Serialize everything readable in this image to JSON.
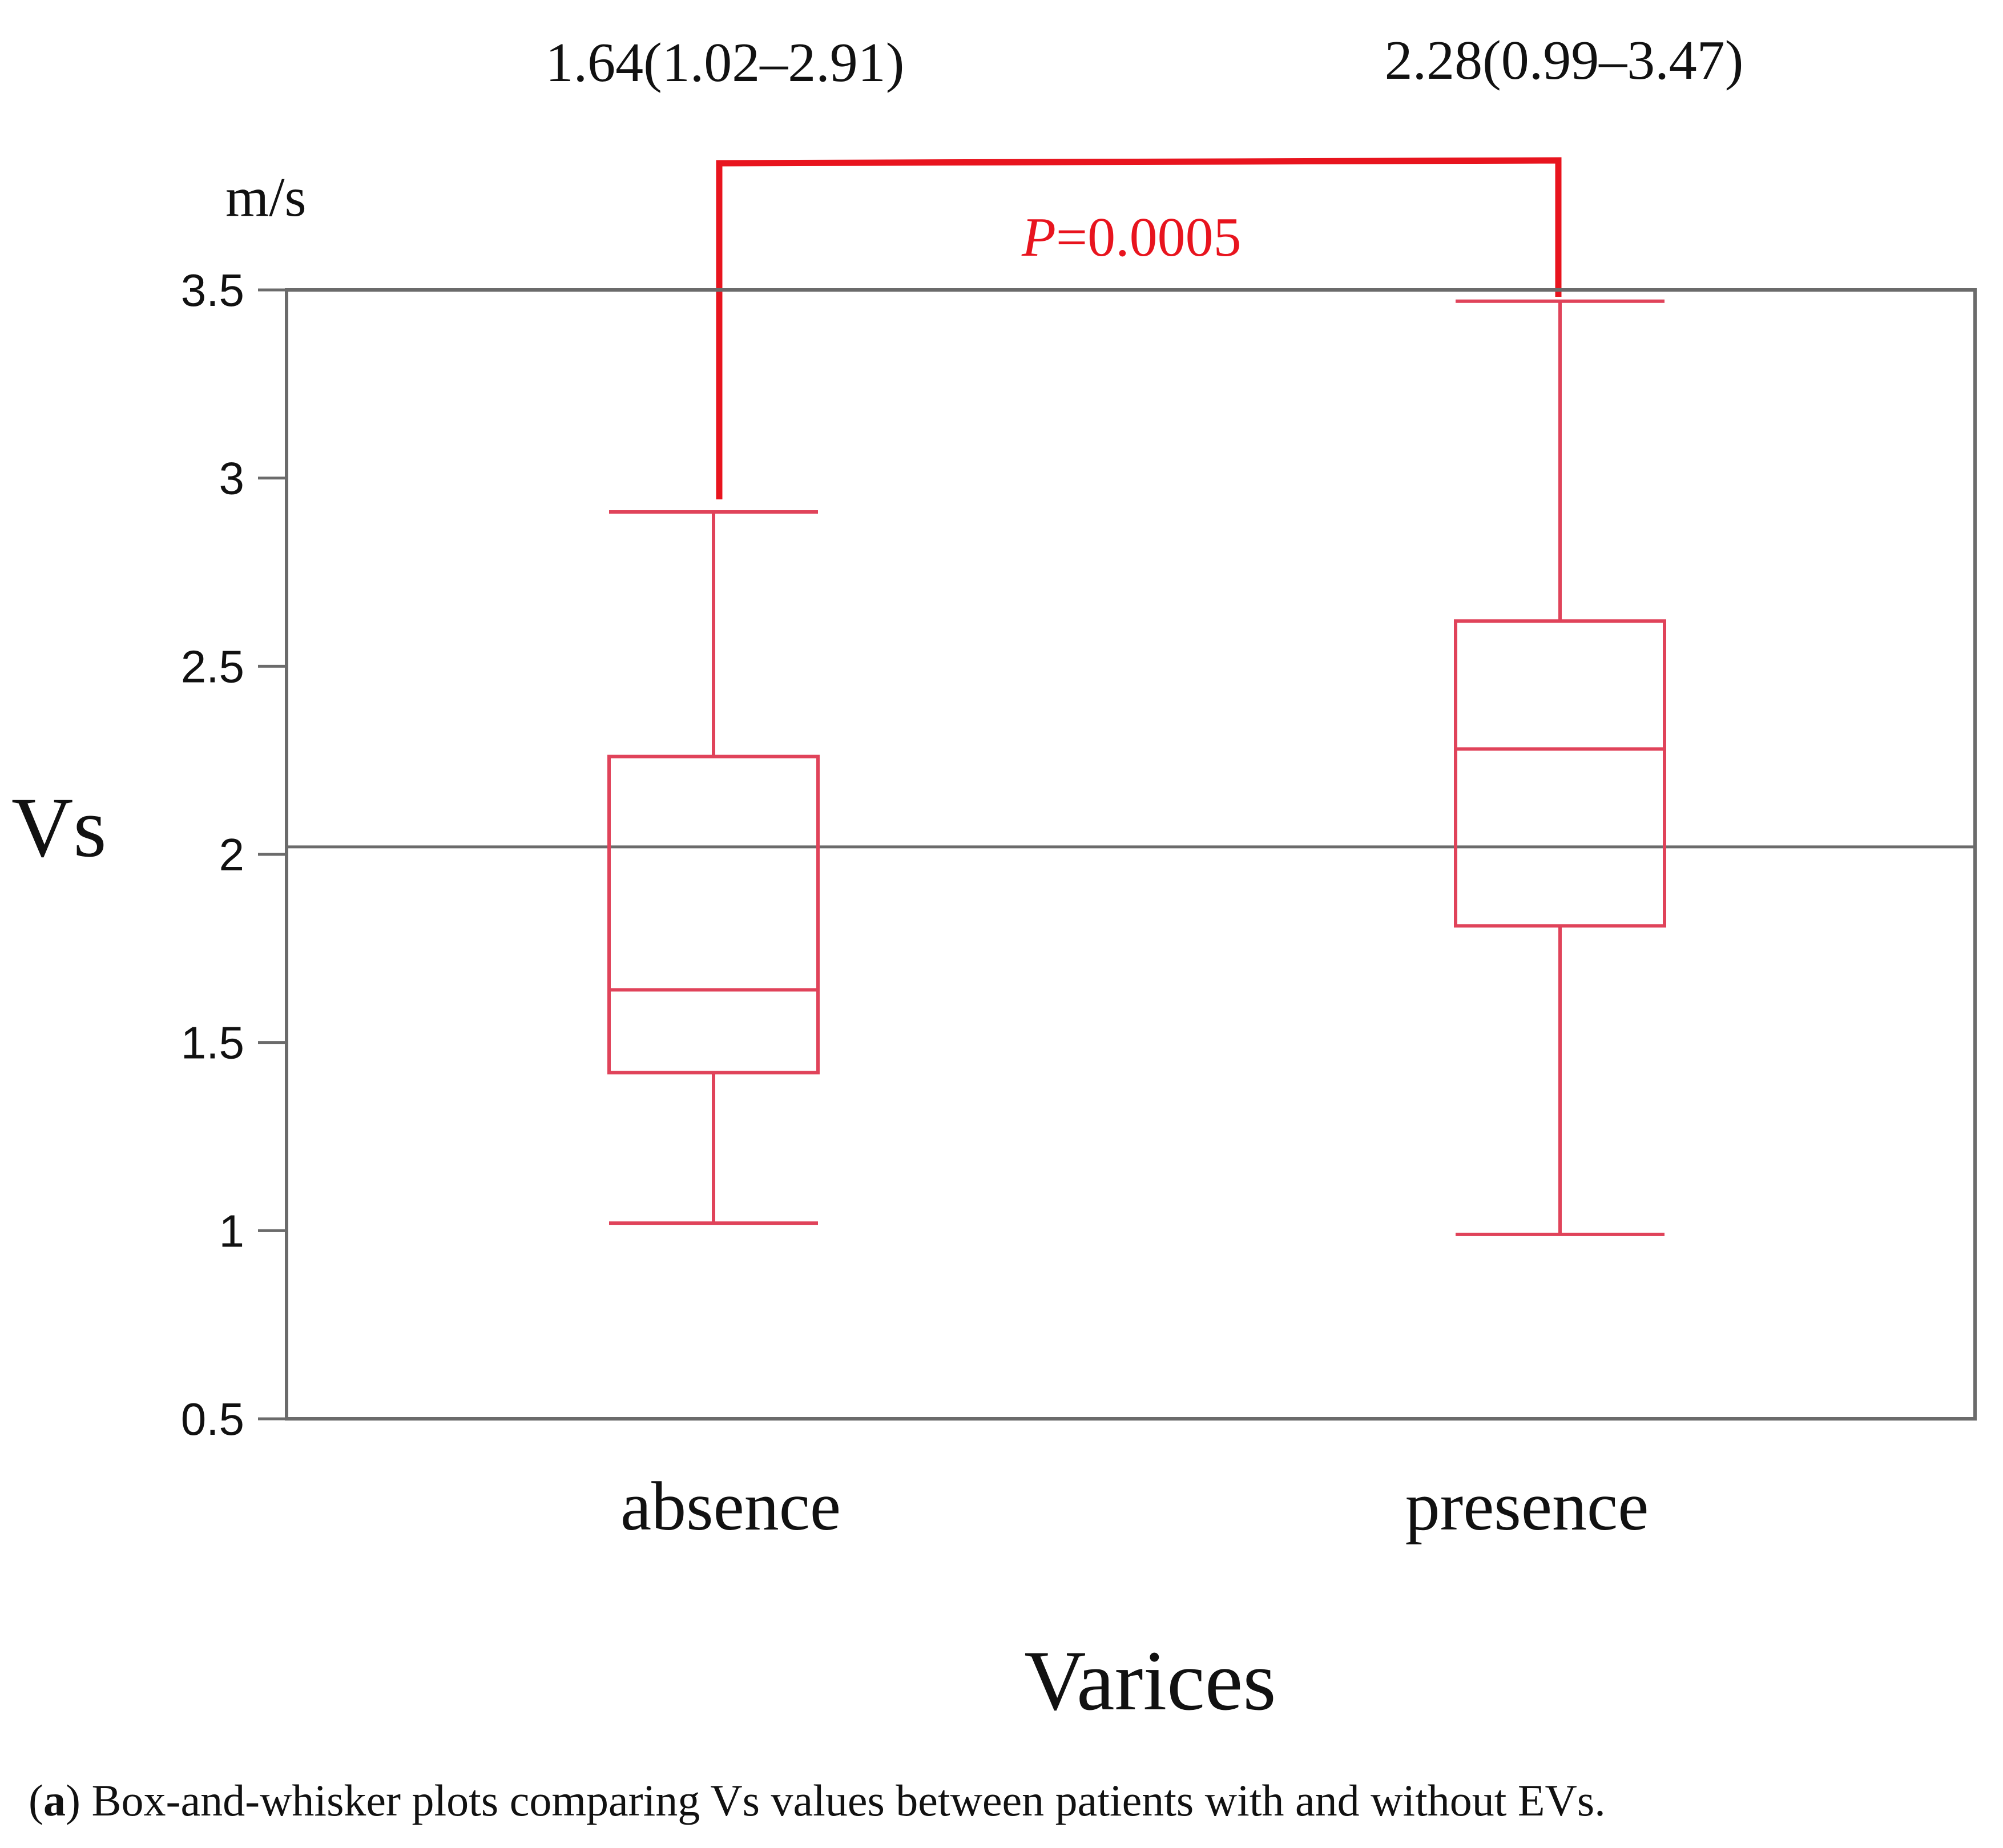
{
  "chart_data": {
    "type": "box",
    "xlabel": "Varices",
    "ylabel": "Vs",
    "unit_label": "m/s",
    "ylim": [
      0.5,
      3.5
    ],
    "yticks": [
      0.5,
      1,
      1.5,
      2,
      2.5,
      3,
      3.5
    ],
    "ytick_labels": [
      "0.5",
      "1",
      "1.5",
      "2",
      "2.5",
      "3",
      "3.5"
    ],
    "reference_line": 2.02,
    "categories": [
      "absence",
      "presence"
    ],
    "boxes": [
      {
        "category": "absence",
        "min": 1.02,
        "q1": 1.42,
        "median": 1.64,
        "q3": 2.26,
        "max": 2.91,
        "summary": "1.64(1.02–2.91)"
      },
      {
        "category": "presence",
        "min": 0.99,
        "q1": 1.81,
        "median": 2.28,
        "q3": 2.62,
        "max": 3.47,
        "summary": "2.28(0.99–3.47)"
      }
    ],
    "significance": {
      "p_symbol": "P",
      "p_value": "=0.0005",
      "between": [
        "absence",
        "presence"
      ]
    },
    "colors": {
      "box": "#e0435a",
      "bracket": "#e8141e",
      "axis": "#6b6b6b",
      "text": "#111111"
    }
  },
  "caption": {
    "label": "a",
    "text": "Box-and-whisker plots comparing Vs values between patients with and without EVs."
  }
}
